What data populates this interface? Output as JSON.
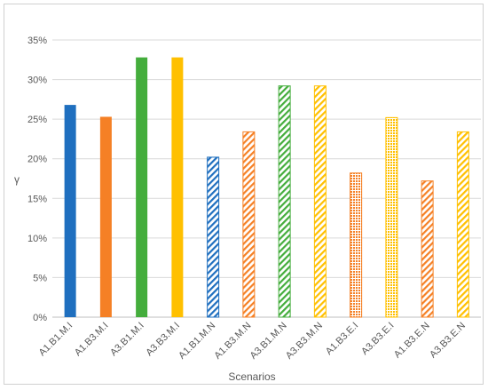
{
  "chart_data": {
    "type": "bar",
    "title": "",
    "xlabel": "Scenarios",
    "ylabel": "γ",
    "ylim": [
      0,
      35
    ],
    "yticks": [
      "0%",
      "5%",
      "10%",
      "15%",
      "20%",
      "25%",
      "30%",
      "35%"
    ],
    "grid": true,
    "legend": "none",
    "categories": [
      "A1.B1.M.I",
      "A1.B3.M.I",
      "A3.B1.M.I",
      "A3.B3.M.I",
      "A1.B1.M.N",
      "A1.B3.M.N",
      "A3.B1.M.N",
      "A3.B3.M.N",
      "A1.B3.E.I",
      "A3.B3.E.I",
      "A1.B3.E.N",
      "A3.B3.E.N"
    ],
    "values": [
      26.8,
      25.3,
      32.8,
      32.8,
      20.2,
      23.4,
      29.2,
      29.2,
      18.2,
      25.2,
      17.2,
      23.4
    ],
    "colors": [
      "#1f6fbf",
      "#f58025",
      "#44ad3c",
      "#ffc000",
      "#1f6fbf",
      "#f58025",
      "#44ad3c",
      "#ffc000",
      "#f58025",
      "#ffc000",
      "#f58025",
      "#ffc000"
    ],
    "fills": [
      "solid",
      "solid",
      "solid",
      "solid",
      "diagonal",
      "diagonal",
      "diagonal",
      "diagonal",
      "dotted",
      "dotted",
      "diagonal",
      "diagonal"
    ]
  }
}
